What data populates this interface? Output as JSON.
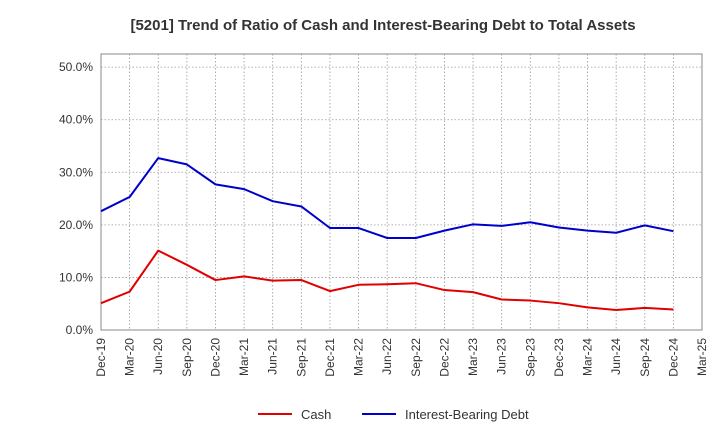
{
  "chart_data": {
    "type": "line",
    "title": "[5201]  Trend of Ratio of Cash and Interest-Bearing Debt to Total Assets",
    "xlabel": "",
    "ylabel": "",
    "ylim": [
      0,
      0.525
    ],
    "y_ticks": [
      {
        "value": 0.0,
        "label": "0.0%"
      },
      {
        "value": 0.1,
        "label": "10.0%"
      },
      {
        "value": 0.2,
        "label": "20.0%"
      },
      {
        "value": 0.3,
        "label": "30.0%"
      },
      {
        "value": 0.4,
        "label": "40.0%"
      },
      {
        "value": 0.5,
        "label": "50.0%"
      }
    ],
    "categories": [
      "Dec-19",
      "Mar-20",
      "Jun-20",
      "Sep-20",
      "Dec-20",
      "Mar-21",
      "Jun-21",
      "Sep-21",
      "Dec-21",
      "Mar-22",
      "Jun-22",
      "Sep-22",
      "Dec-22",
      "Mar-23",
      "Jun-23",
      "Sep-23",
      "Dec-23",
      "Mar-24",
      "Jun-24",
      "Sep-24",
      "Dec-24",
      "Mar-25"
    ],
    "grid": true,
    "legend_position": "bottom",
    "series": [
      {
        "name": "Cash",
        "color": "#e00000",
        "values": [
          0.051,
          0.073,
          0.151,
          0.124,
          0.095,
          0.102,
          0.094,
          0.095,
          0.074,
          0.086,
          0.087,
          0.089,
          0.076,
          0.072,
          0.058,
          0.056,
          0.051,
          0.043,
          0.038,
          0.042,
          0.039,
          null
        ]
      },
      {
        "name": "Interest-Bearing Debt",
        "color": "#0000cc",
        "values": [
          0.226,
          0.253,
          0.327,
          0.315,
          0.277,
          0.268,
          0.245,
          0.235,
          0.194,
          0.194,
          0.175,
          0.175,
          0.189,
          0.201,
          0.198,
          0.205,
          0.195,
          0.189,
          0.185,
          0.199,
          0.188,
          null
        ]
      }
    ]
  }
}
